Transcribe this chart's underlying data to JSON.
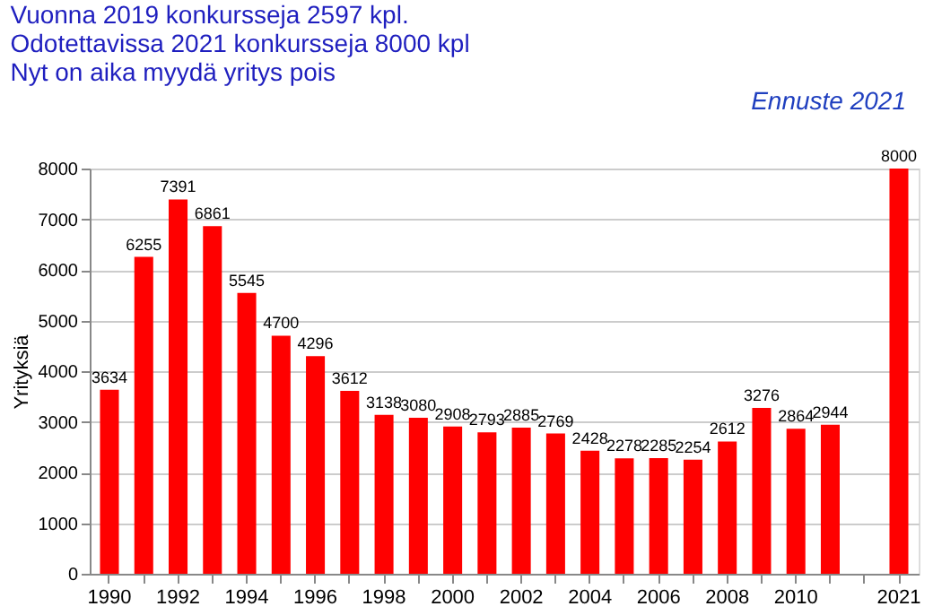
{
  "chart_data": {
    "type": "bar",
    "title": [
      "Vuonna 2019 konkursseja 2597 kpl.",
      "Odotettavissa 2021 konkursseja 8000 kpl",
      "Nyt on aika myydä yritys pois"
    ],
    "ylabel": "Yrityksiä",
    "annotations": [
      "Ennuste 2021"
    ],
    "categories": [
      "1990",
      null,
      "1992",
      null,
      "1994",
      null,
      "1996",
      null,
      "1998",
      null,
      "2000",
      null,
      "2002",
      null,
      "2004",
      null,
      "2006",
      null,
      "2008",
      null,
      "2010",
      null,
      null,
      "2021"
    ],
    "values": [
      3634,
      6255,
      7391,
      6861,
      5545,
      4700,
      4296,
      3612,
      3138,
      3080,
      2908,
      2793,
      2885,
      2769,
      2428,
      2278,
      2285,
      2254,
      2612,
      3276,
      2864,
      2944,
      null,
      8000
    ],
    "color": "#ff0000",
    "ylim": [
      0,
      8000
    ],
    "yticks": [
      0,
      1000,
      2000,
      3000,
      4000,
      5000,
      6000,
      7000,
      8000
    ],
    "grid": "y",
    "data_labels": true
  }
}
